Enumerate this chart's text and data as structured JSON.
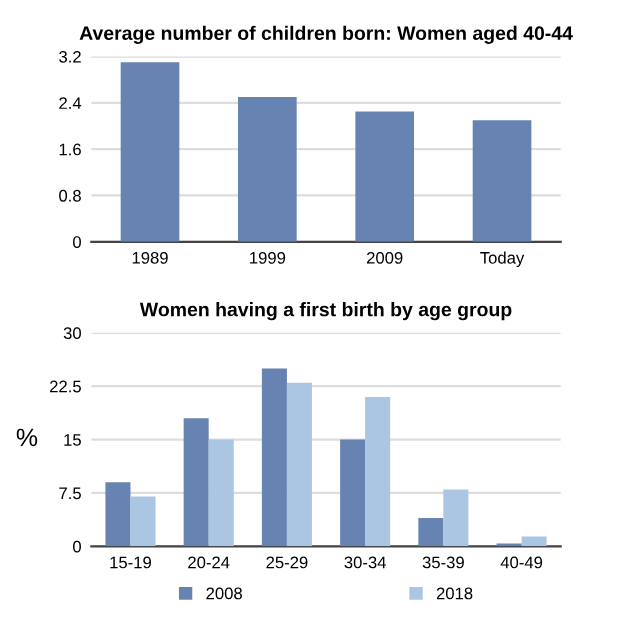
{
  "chart_data": [
    {
      "type": "bar",
      "title": "Average number of children born: Women aged 40-44",
      "categories": [
        "1989",
        "1999",
        "2009",
        "Today"
      ],
      "series": [
        {
          "color": "#6783b1",
          "values": [
            3.1,
            2.5,
            2.25,
            2.1
          ]
        }
      ],
      "ylim": [
        0,
        3.2
      ],
      "yticks": [
        0,
        0.8,
        1.6,
        2.4,
        3.2
      ],
      "grid": "y",
      "legend": false
    },
    {
      "type": "bar",
      "title": "Women having a first birth by age group",
      "ylabel": "%",
      "categories": [
        "15-19",
        "20-24",
        "25-29",
        "30-34",
        "35-39",
        "40-49"
      ],
      "series": [
        {
          "name": "2008",
          "color": "#6783b1",
          "values": [
            9,
            18,
            25,
            15,
            4,
            0.4
          ]
        },
        {
          "name": "2018",
          "color": "#abc6e2",
          "values": [
            7,
            15,
            23,
            21,
            8,
            1.4
          ]
        }
      ],
      "ylim": [
        0,
        30
      ],
      "yticks": [
        0,
        7.5,
        15,
        22.5,
        30
      ],
      "grid": "y",
      "legend": "bottom"
    }
  ]
}
